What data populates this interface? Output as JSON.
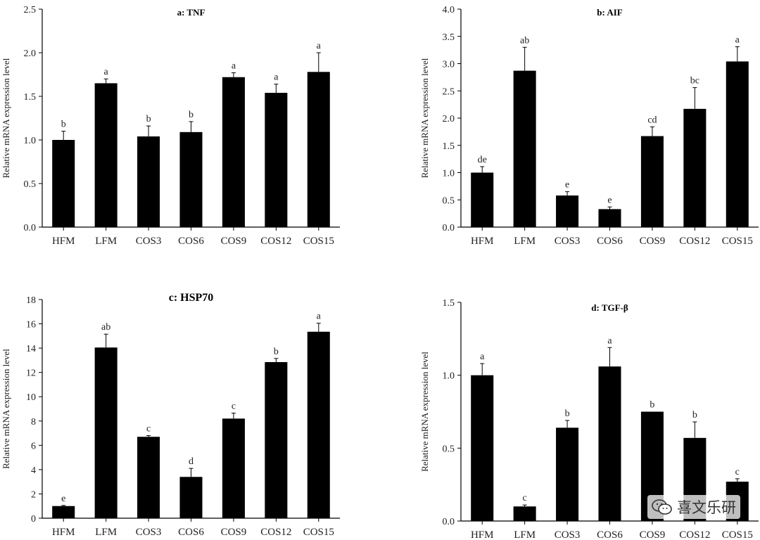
{
  "watermark": {
    "text": "喜文乐研",
    "icon": "wechat-icon"
  },
  "chart_data": [
    {
      "id": "a",
      "type": "bar",
      "title": "a: TNF",
      "ylabel": "Relative mRNA expression level",
      "xlabel": "",
      "ylim": [
        0,
        2.5
      ],
      "yticks": [
        0.0,
        0.5,
        1.0,
        1.5,
        2.0,
        2.5
      ],
      "ytick_labels": [
        "0.0",
        "0.5",
        "1.0",
        "1.5",
        "2.0",
        "2.5"
      ],
      "categories": [
        "HFM",
        "LFM",
        "COS3",
        "COS6",
        "COS9",
        "COS12",
        "COS15"
      ],
      "values": [
        1.0,
        1.65,
        1.04,
        1.09,
        1.72,
        1.54,
        1.78
      ],
      "errors": [
        0.1,
        0.05,
        0.12,
        0.12,
        0.05,
        0.1,
        0.22
      ],
      "significance": [
        "b",
        "a",
        "b",
        "b",
        "a",
        "a",
        "a"
      ]
    },
    {
      "id": "b",
      "type": "bar",
      "title": "b: AIF",
      "ylabel": "Relative mRNA expression level",
      "xlabel": "",
      "ylim": [
        0,
        4.0
      ],
      "yticks": [
        0.0,
        0.5,
        1.0,
        1.5,
        2.0,
        2.5,
        3.0,
        3.5,
        4.0
      ],
      "ytick_labels": [
        "0.0",
        "0.5",
        "1.0",
        "1.5",
        "2.0",
        "2.5",
        "3.0",
        "3.5",
        "4.0"
      ],
      "categories": [
        "HFM",
        "LFM",
        "COS3",
        "COS6",
        "COS9",
        "COS12",
        "COS15"
      ],
      "values": [
        1.0,
        2.87,
        0.58,
        0.33,
        1.67,
        2.17,
        3.04
      ],
      "errors": [
        0.11,
        0.43,
        0.07,
        0.04,
        0.17,
        0.39,
        0.27
      ],
      "significance": [
        "de",
        "ab",
        "e",
        "e",
        "cd",
        "bc",
        "a"
      ]
    },
    {
      "id": "c",
      "type": "bar",
      "title": "c: HSP70",
      "ylabel": "Relative mRNA expression level",
      "xlabel": "",
      "ylim": [
        0,
        18
      ],
      "yticks": [
        0,
        2,
        4,
        6,
        8,
        10,
        12,
        14,
        16,
        18
      ],
      "ytick_labels": [
        "0",
        "2",
        "4",
        "6",
        "8",
        "10",
        "12",
        "14",
        "16",
        "18"
      ],
      "categories": [
        "HFM",
        "LFM",
        "COS3",
        "COS6",
        "COS9",
        "COS12",
        "COS15"
      ],
      "values": [
        1.0,
        14.05,
        6.7,
        3.4,
        8.2,
        12.85,
        15.35
      ],
      "errors": [
        0.05,
        1.1,
        0.1,
        0.7,
        0.45,
        0.3,
        0.7
      ],
      "significance": [
        "e",
        "ab",
        "c",
        "d",
        "c",
        "b",
        "a"
      ]
    },
    {
      "id": "d",
      "type": "bar",
      "title": "d: TGF-β",
      "ylabel": "Relative mRNA expression level",
      "xlabel": "",
      "ylim": [
        0,
        1.5
      ],
      "yticks": [
        0.0,
        0.5,
        1.0,
        1.5
      ],
      "ytick_labels": [
        "0.0",
        "0.5",
        "1.0",
        "1.5"
      ],
      "categories": [
        "HFM",
        "LFM",
        "COS3",
        "COS6",
        "COS9",
        "COS12",
        "COS15"
      ],
      "values": [
        1.0,
        0.1,
        0.64,
        1.06,
        0.75,
        0.57,
        0.27
      ],
      "errors": [
        0.08,
        0.01,
        0.05,
        0.13,
        0.0,
        0.11,
        0.02
      ],
      "significance": [
        "a",
        "c",
        "b",
        "a",
        "b",
        "b",
        "c"
      ]
    }
  ]
}
